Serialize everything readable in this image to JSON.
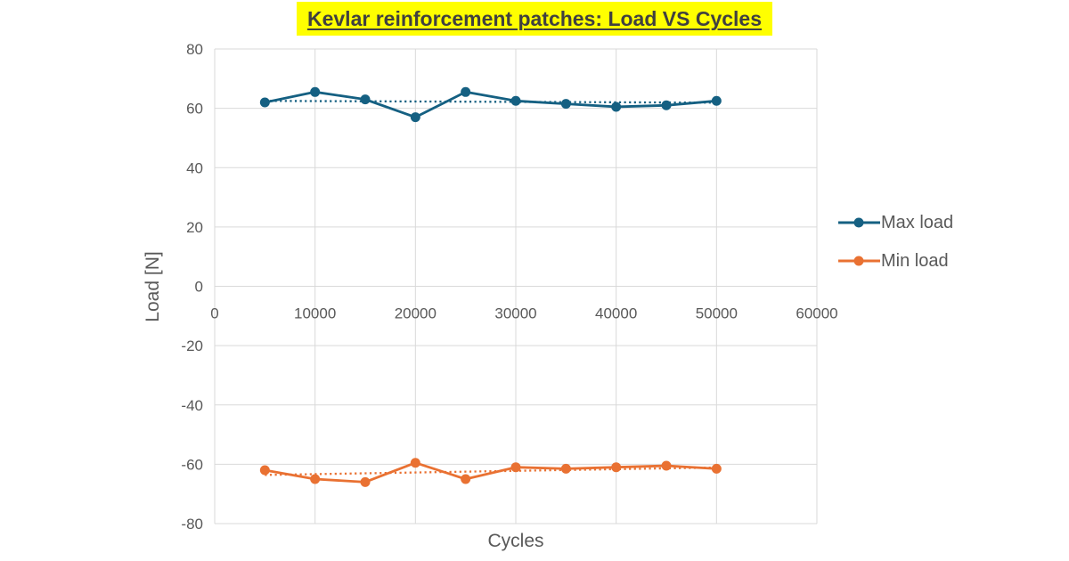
{
  "title": "Kevlar reinforcement patches: Load VS Cycles",
  "chart_data": {
    "type": "line",
    "title": "Kevlar reinforcement patches: Load VS Cycles",
    "xlabel": "Cycles",
    "ylabel": "Load [N]",
    "xlim": [
      0,
      60000
    ],
    "ylim": [
      -80,
      80
    ],
    "x_ticks": [
      0,
      10000,
      20000,
      30000,
      40000,
      50000,
      60000
    ],
    "y_ticks": [
      80,
      60,
      40,
      20,
      0,
      -20,
      -40,
      -60,
      -80
    ],
    "grid": true,
    "legend_position": "right",
    "x": [
      5000,
      10000,
      15000,
      20000,
      25000,
      30000,
      35000,
      40000,
      45000,
      50000
    ],
    "series": [
      {
        "name": "Max load",
        "color": "#156082",
        "marker": "circle",
        "values": [
          62,
          65.5,
          63,
          57,
          65.5,
          62.5,
          61.5,
          60.5,
          61,
          62.5
        ],
        "trendline": {
          "style": "dotted",
          "start": 62.5,
          "end": 61.9
        }
      },
      {
        "name": "Min load",
        "color": "#E97132",
        "marker": "circle",
        "values": [
          -62,
          -65,
          -66,
          -59.5,
          -65,
          -61,
          -61.5,
          -61,
          -60.5,
          -61.5
        ],
        "trendline": {
          "style": "dotted",
          "start": -63.6,
          "end": -61.1
        }
      }
    ]
  },
  "colors": {
    "title_text": "#404040",
    "title_highlight": "#FFFF00",
    "axis_text": "#595959",
    "gridline": "#D9D9D9",
    "max_load": "#156082",
    "min_load": "#E97132",
    "background": "#FFFFFF"
  }
}
